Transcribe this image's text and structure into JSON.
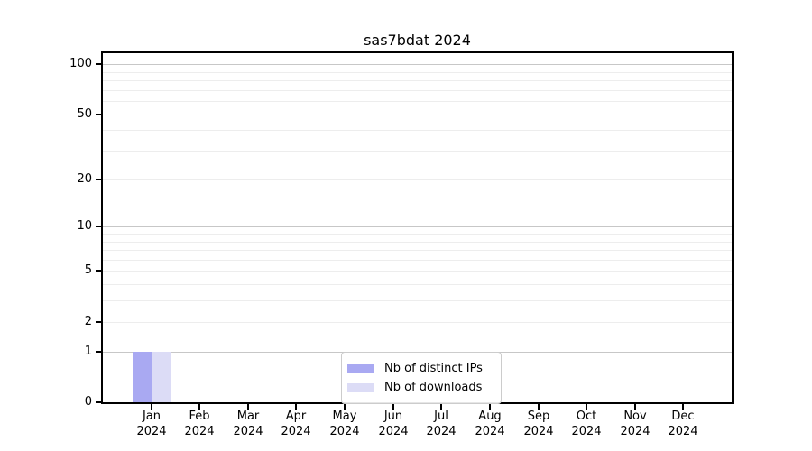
{
  "title": "sas7bdat 2024",
  "chart_data": {
    "type": "bar",
    "title": "sas7bdat 2024",
    "x_tick_months": [
      "Jan",
      "Feb",
      "Mar",
      "Apr",
      "May",
      "Jun",
      "Jul",
      "Aug",
      "Sep",
      "Oct",
      "Nov",
      "Dec"
    ],
    "x_tick_year": "2024",
    "series": [
      {
        "name": "Nb of distinct IPs",
        "color": "#a9a9f2",
        "values": [
          1,
          0,
          0,
          0,
          0,
          0,
          0,
          0,
          0,
          0,
          0,
          0
        ]
      },
      {
        "name": "Nb of downloads",
        "color": "#dcdcf6",
        "values": [
          1,
          0,
          0,
          0,
          0,
          0,
          0,
          0,
          0,
          0,
          0,
          0
        ]
      }
    ],
    "y_axis": {
      "scale": "log1p",
      "tick_values": [
        0,
        1,
        2,
        5,
        10,
        20,
        50,
        100
      ],
      "tick_labels": [
        "0",
        "1",
        "2",
        "5",
        "10",
        "20",
        "50",
        "100"
      ],
      "major_gridlines": [
        1,
        10,
        100
      ],
      "minor_gridlines": [
        2,
        3,
        4,
        5,
        6,
        7,
        8,
        9,
        20,
        30,
        40,
        50,
        60,
        70,
        80,
        90
      ],
      "ymax_hint": 115,
      "ymin": 0
    },
    "grid": "horizontal",
    "legend": {
      "position": "lower-center",
      "entries": [
        "Nb of distinct IPs",
        "Nb of downloads"
      ]
    },
    "colors": {
      "major_grid": "#c7c7c7",
      "minor_grid": "#ededed",
      "spine": "#000000",
      "background": "#ffffff"
    }
  }
}
